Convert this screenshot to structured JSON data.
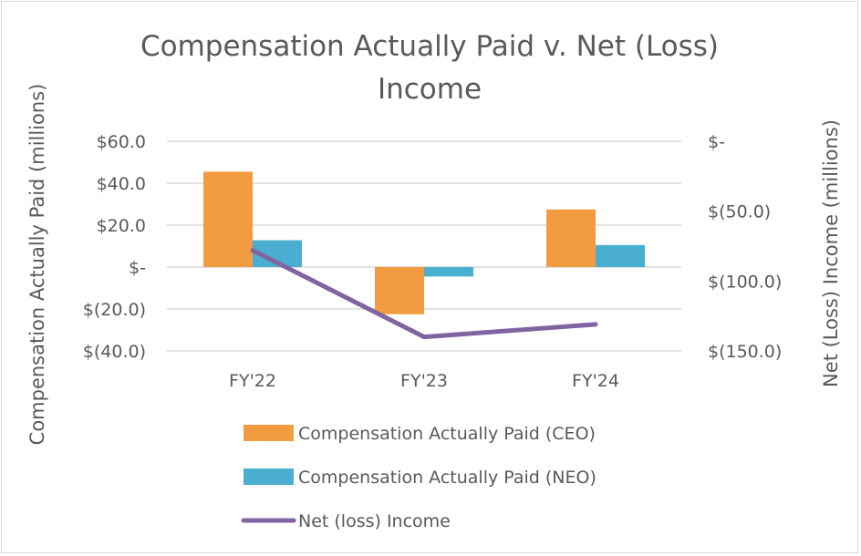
{
  "chart_data": {
    "type": "bar",
    "title_lines": [
      "Compensation Actually Paid v. Net (Loss)",
      "Income"
    ],
    "categories": [
      "FY'22",
      "FY'23",
      "FY'24"
    ],
    "ylabel": "Compensation Actually Paid (millions)",
    "y2label": "Net (Loss) Income (millions)",
    "ylim": [
      -40,
      60
    ],
    "y2lim": [
      -150,
      0
    ],
    "y_ticks": [
      60,
      40,
      20,
      0,
      -20,
      -40
    ],
    "y_tick_labels": [
      "$60.0",
      "$40.0",
      "$20.0",
      "$-",
      "$(20.0)",
      "$(40.0)"
    ],
    "y2_ticks": [
      0,
      -50,
      -100,
      -150
    ],
    "y2_tick_labels": [
      "$-",
      "$(50.0)",
      "$(100.0)",
      "$(150.0)"
    ],
    "series": [
      {
        "name": "Compensation Actually Paid (CEO)",
        "type": "bar",
        "axis": "left",
        "color": "#f39b40",
        "values": [
          45.5,
          -22.5,
          27.5
        ]
      },
      {
        "name": "Compensation Actually Paid (NEO)",
        "type": "bar",
        "axis": "left",
        "color": "#4aaed0",
        "values": [
          12.8,
          -4.5,
          10.5
        ]
      },
      {
        "name": "Net (loss) Income",
        "type": "line",
        "axis": "right",
        "color": "#8064a2",
        "values": [
          -78,
          -140,
          -131
        ]
      }
    ],
    "grid": true,
    "legend_position": "bottom"
  }
}
